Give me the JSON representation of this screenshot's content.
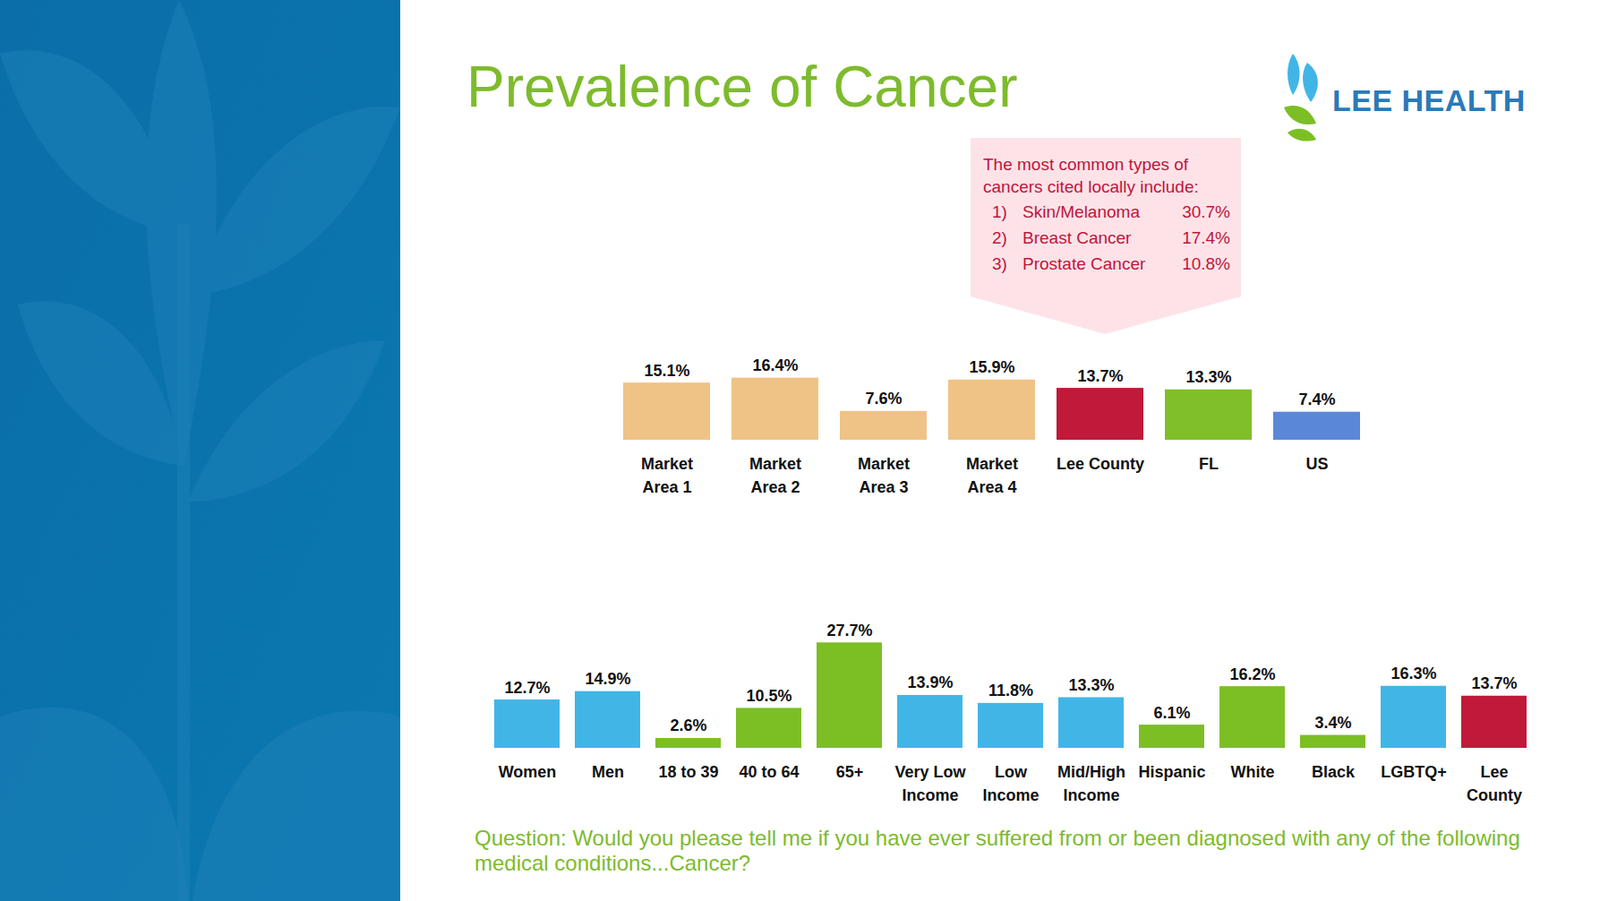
{
  "title": "Prevalence of Cancer",
  "logo": "LEE HEALTH",
  "callout": {
    "heading": "The most common types of cancers cited locally include:",
    "items": [
      {
        "rank": "1)",
        "name": "Skin/Melanoma",
        "value": "30.7%"
      },
      {
        "rank": "2)",
        "name": "Breast Cancer",
        "value": "17.4%"
      },
      {
        "rank": "3)",
        "name": "Prostate Cancer",
        "value": "10.8%"
      }
    ]
  },
  "question": "Question: Would you please tell me if you have ever suffered from or been diagnosed with any of the following medical conditions...Cancer?",
  "chart_data": [
    {
      "type": "bar",
      "categories": [
        "Market Area 1",
        "Market Area 2",
        "Market Area 3",
        "Market Area 4",
        "Lee County",
        "FL",
        "US"
      ],
      "values": [
        15.1,
        16.4,
        7.6,
        15.9,
        13.7,
        13.3,
        7.4
      ],
      "value_labels": [
        "15.1%",
        "16.4%",
        "7.6%",
        "15.9%",
        "13.7%",
        "13.3%",
        "7.4%"
      ],
      "colors": [
        "#efc386",
        "#efc386",
        "#efc386",
        "#efc386",
        "#c0193a",
        "#80bf2a",
        "#5b87d8"
      ],
      "ylim": [
        0,
        22
      ],
      "data_labels": true,
      "tick_labels": "x"
    },
    {
      "type": "bar",
      "categories": [
        "Women",
        "Men",
        "18 to 39",
        "40 to 64",
        "65+",
        "Very Low Income",
        "Low Income",
        "Mid/High Income",
        "Hispanic",
        "White",
        "Black",
        "LGBTQ+",
        "Lee County"
      ],
      "values": [
        12.7,
        14.9,
        2.6,
        10.5,
        27.7,
        13.9,
        11.8,
        13.3,
        6.1,
        16.2,
        3.4,
        16.3,
        13.7
      ],
      "value_labels": [
        "12.7%",
        "14.9%",
        "2.6%",
        "10.5%",
        "27.7%",
        "13.9%",
        "11.8%",
        "13.3%",
        "6.1%",
        "16.2%",
        "3.4%",
        "16.3%",
        "13.7%"
      ],
      "colors": [
        "#41b6e6",
        "#41b6e6",
        "#7cbf25",
        "#7cbf25",
        "#7cbf25",
        "#41b6e6",
        "#41b6e6",
        "#41b6e6",
        "#7cbf25",
        "#7cbf25",
        "#7cbf25",
        "#41b6e6",
        "#c0193a"
      ],
      "ylim": [
        0,
        32
      ],
      "data_labels": true,
      "tick_labels": "x"
    }
  ]
}
